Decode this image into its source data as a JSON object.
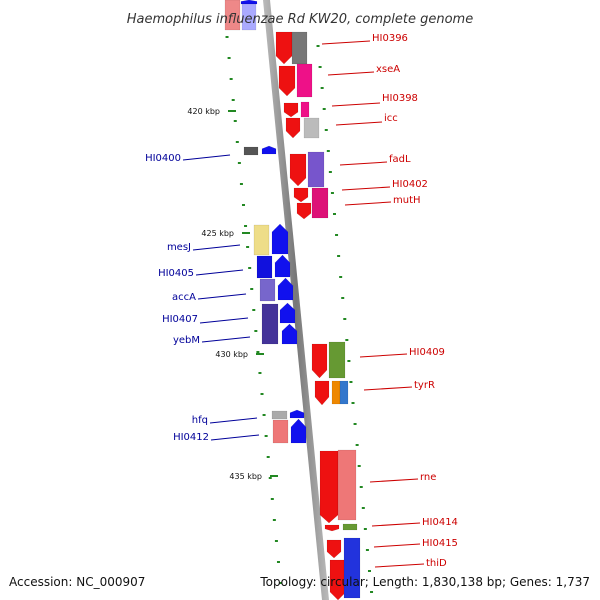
{
  "header": {
    "title": "Haemophilus influenzae Rd KW20, complete genome"
  },
  "footer": {
    "accession": "Accession: NC_000907",
    "summary": "Topology: circular; Length: 1,830,138 bp; Genes: 1,737"
  },
  "ticks": [
    {
      "label": "420 kbp"
    },
    {
      "label": "425 kbp"
    },
    {
      "label": "430 kbp"
    },
    {
      "label": "435 kbp"
    }
  ],
  "labels": {
    "forward": [
      "HI0396",
      "xseA",
      "HI0398",
      "icc",
      "fadL",
      "HI0402",
      "mutH",
      "HI0409",
      "tyrR",
      "rne",
      "HI0414",
      "HI0415",
      "thiD"
    ],
    "reverse": [
      "HI0400",
      "mesJ",
      "HI0405",
      "accA",
      "HI0407",
      "yebM",
      "hfq",
      "HI0412"
    ]
  },
  "colors": {
    "forward_label": "#cc0000",
    "reverse_label": "#000099",
    "forward_strand": "#ee0000",
    "reverse_strand": "#0000ee",
    "backbone": "#999999",
    "tick": "#228822"
  }
}
